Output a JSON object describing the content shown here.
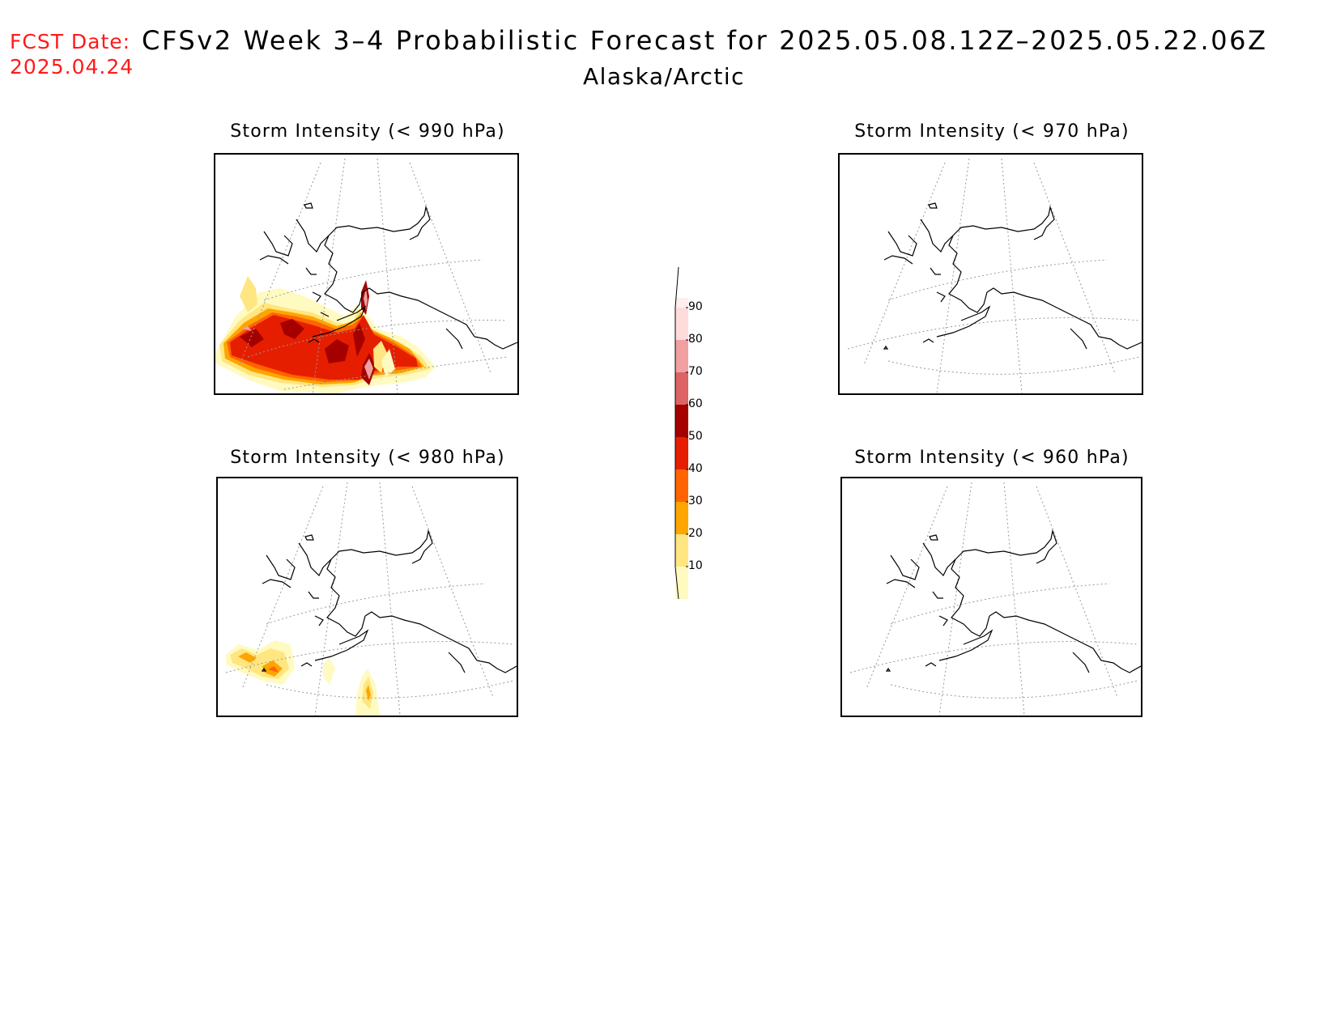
{
  "header": {
    "fcst_label": "FCST Date:",
    "fcst_date": "2025.04.24",
    "title": "CFSv2 Week 3–4 Probabilistic Forecast for 2025.05.08.12Z–2025.05.22.06Z",
    "region": "Alaska/Arctic"
  },
  "panels": [
    {
      "title": "Storm Intensity (< 990 hPa)"
    },
    {
      "title": "Storm Intensity (< 970 hPa)"
    },
    {
      "title": "Storm Intensity (< 980 hPa)"
    },
    {
      "title": "Storm Intensity (< 960 hPa)"
    }
  ],
  "colorbar": {
    "levels": [
      "10",
      "20",
      "30",
      "40",
      "50",
      "60",
      "70",
      "80",
      "90"
    ],
    "colors": [
      "#fffac0",
      "#ffe680",
      "#ffa500",
      "#ff6400",
      "#e61e00",
      "#a50000",
      "#dc6464",
      "#f0a0a0",
      "#ffdcdc",
      "#ffeeee"
    ]
  }
}
